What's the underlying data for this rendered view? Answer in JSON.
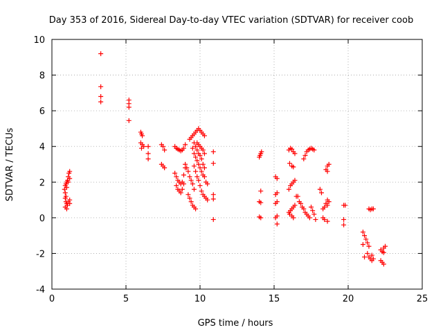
{
  "chart_data": {
    "type": "scatter",
    "title": "Day 353 of 2016, Sidereal Day-to-day VTEC variation (SDTVAR) for receiver coob",
    "xlabel": "GPS time / hours",
    "ylabel": "SDTVAR / TECUs",
    "xlim": [
      0,
      25
    ],
    "ylim": [
      -4,
      10
    ],
    "xticks": [
      0,
      5,
      10,
      15,
      20,
      25
    ],
    "yticks": [
      -4,
      -2,
      0,
      2,
      4,
      6,
      8,
      10
    ],
    "grid": true,
    "marker": "+",
    "marker_color": "#ff0000",
    "series": [
      {
        "name": "SDTVAR",
        "points": [
          [
            0.85,
            1.6
          ],
          [
            0.9,
            1.8
          ],
          [
            0.95,
            1.9
          ],
          [
            1.0,
            2.0
          ],
          [
            1.05,
            2.1
          ],
          [
            1.1,
            2.3
          ],
          [
            1.15,
            2.5
          ],
          [
            1.2,
            2.6
          ],
          [
            0.9,
            1.4
          ],
          [
            1.0,
            1.7
          ],
          [
            1.1,
            2.0
          ],
          [
            1.2,
            2.2
          ],
          [
            0.95,
            1.2
          ],
          [
            0.9,
            1.1
          ],
          [
            0.95,
            0.9
          ],
          [
            1.0,
            0.8
          ],
          [
            1.05,
            0.7
          ],
          [
            0.9,
            0.6
          ],
          [
            1.0,
            0.5
          ],
          [
            1.1,
            0.9
          ],
          [
            1.2,
            1.0
          ],
          [
            1.2,
            0.8
          ],
          [
            3.3,
            9.2
          ],
          [
            3.3,
            7.35
          ],
          [
            3.3,
            6.8
          ],
          [
            3.3,
            6.5
          ],
          [
            5.2,
            6.6
          ],
          [
            5.2,
            6.4
          ],
          [
            5.2,
            6.2
          ],
          [
            5.2,
            5.45
          ],
          [
            6.0,
            4.8
          ],
          [
            6.05,
            4.7
          ],
          [
            6.1,
            4.6
          ],
          [
            6.0,
            4.2
          ],
          [
            6.1,
            4.1
          ],
          [
            6.2,
            4.0
          ],
          [
            6.05,
            3.9
          ],
          [
            6.5,
            4.0
          ],
          [
            6.5,
            3.6
          ],
          [
            6.5,
            3.3
          ],
          [
            7.4,
            4.1
          ],
          [
            7.5,
            4.0
          ],
          [
            7.6,
            3.8
          ],
          [
            7.4,
            3.0
          ],
          [
            7.5,
            2.9
          ],
          [
            7.6,
            2.8
          ],
          [
            8.3,
            4.0
          ],
          [
            8.4,
            3.9
          ],
          [
            8.5,
            3.85
          ],
          [
            8.6,
            3.8
          ],
          [
            8.7,
            3.75
          ],
          [
            8.8,
            3.8
          ],
          [
            8.9,
            3.9
          ],
          [
            9.0,
            4.1
          ],
          [
            8.3,
            2.5
          ],
          [
            8.4,
            2.3
          ],
          [
            8.5,
            2.1
          ],
          [
            8.6,
            2.0
          ],
          [
            8.7,
            1.9
          ],
          [
            8.8,
            2.0
          ],
          [
            8.9,
            2.4
          ],
          [
            9.0,
            2.8
          ],
          [
            8.4,
            1.8
          ],
          [
            8.5,
            1.6
          ],
          [
            8.6,
            1.5
          ],
          [
            8.7,
            1.4
          ],
          [
            8.8,
            1.6
          ],
          [
            8.9,
            1.9
          ],
          [
            9.0,
            3.0
          ],
          [
            9.1,
            2.8
          ],
          [
            9.2,
            2.6
          ],
          [
            9.3,
            2.3
          ],
          [
            9.4,
            2.1
          ],
          [
            9.5,
            1.9
          ],
          [
            9.6,
            1.6
          ],
          [
            9.2,
            1.3
          ],
          [
            9.3,
            1.1
          ],
          [
            9.4,
            0.9
          ],
          [
            9.5,
            0.7
          ],
          [
            9.6,
            0.6
          ],
          [
            9.7,
            0.5
          ],
          [
            9.3,
            4.4
          ],
          [
            9.4,
            4.5
          ],
          [
            9.5,
            4.6
          ],
          [
            9.6,
            4.7
          ],
          [
            9.7,
            4.8
          ],
          [
            9.8,
            4.9
          ],
          [
            9.9,
            5.0
          ],
          [
            10.0,
            4.9
          ],
          [
            10.1,
            4.8
          ],
          [
            10.2,
            4.7
          ],
          [
            10.3,
            4.6
          ],
          [
            9.6,
            4.2
          ],
          [
            9.7,
            4.0
          ],
          [
            9.8,
            3.8
          ],
          [
            9.9,
            3.6
          ],
          [
            10.0,
            3.5
          ],
          [
            10.1,
            3.3
          ],
          [
            10.2,
            3.0
          ],
          [
            10.3,
            2.8
          ],
          [
            9.5,
            3.9
          ],
          [
            9.6,
            3.6
          ],
          [
            9.7,
            3.4
          ],
          [
            9.8,
            3.2
          ],
          [
            9.9,
            3.0
          ],
          [
            10.0,
            2.8
          ],
          [
            10.1,
            2.6
          ],
          [
            10.2,
            2.4
          ],
          [
            10.3,
            2.3
          ],
          [
            10.4,
            2.0
          ],
          [
            10.5,
            1.9
          ],
          [
            9.6,
            2.9
          ],
          [
            9.7,
            2.6
          ],
          [
            9.8,
            2.3
          ],
          [
            9.9,
            2.1
          ],
          [
            10.0,
            1.8
          ],
          [
            10.1,
            1.5
          ],
          [
            10.2,
            1.3
          ],
          [
            10.3,
            1.2
          ],
          [
            10.4,
            1.1
          ],
          [
            10.5,
            1.0
          ],
          [
            9.8,
            4.2
          ],
          [
            9.9,
            4.1
          ],
          [
            10.0,
            4.0
          ],
          [
            10.1,
            3.9
          ],
          [
            10.2,
            3.8
          ],
          [
            10.3,
            3.6
          ],
          [
            10.9,
            3.7
          ],
          [
            10.9,
            3.05
          ],
          [
            10.9,
            1.3
          ],
          [
            10.9,
            1.05
          ],
          [
            10.9,
            -0.1
          ],
          [
            14.0,
            3.4
          ],
          [
            14.05,
            3.5
          ],
          [
            14.1,
            3.6
          ],
          [
            14.15,
            3.7
          ],
          [
            14.1,
            1.5
          ],
          [
            14.0,
            0.9
          ],
          [
            14.1,
            0.85
          ],
          [
            14.0,
            0.05
          ],
          [
            14.1,
            0.0
          ],
          [
            15.1,
            2.3
          ],
          [
            15.2,
            2.2
          ],
          [
            15.2,
            1.4
          ],
          [
            15.1,
            1.3
          ],
          [
            15.2,
            0.9
          ],
          [
            15.1,
            0.8
          ],
          [
            15.2,
            0.1
          ],
          [
            15.1,
            0.0
          ],
          [
            15.2,
            -0.35
          ],
          [
            16.0,
            3.8
          ],
          [
            16.1,
            3.9
          ],
          [
            16.2,
            3.85
          ],
          [
            16.3,
            3.7
          ],
          [
            16.4,
            3.6
          ],
          [
            16.05,
            3.05
          ],
          [
            16.2,
            2.9
          ],
          [
            16.3,
            2.85
          ],
          [
            16.0,
            1.6
          ],
          [
            16.1,
            1.8
          ],
          [
            16.2,
            1.9
          ],
          [
            16.3,
            2.0
          ],
          [
            16.4,
            2.1
          ],
          [
            16.0,
            0.3
          ],
          [
            16.1,
            0.4
          ],
          [
            16.2,
            0.5
          ],
          [
            16.3,
            0.6
          ],
          [
            16.4,
            0.7
          ],
          [
            16.05,
            0.2
          ],
          [
            16.2,
            0.1
          ],
          [
            16.3,
            0.0
          ],
          [
            16.5,
            1.2
          ],
          [
            16.6,
            1.2
          ],
          [
            16.7,
            0.9
          ],
          [
            16.8,
            0.8
          ],
          [
            16.9,
            0.6
          ],
          [
            17.0,
            0.5
          ],
          [
            17.1,
            0.3
          ],
          [
            17.2,
            0.2
          ],
          [
            17.3,
            0.1
          ],
          [
            17.4,
            0.0
          ],
          [
            17.0,
            3.3
          ],
          [
            17.1,
            3.5
          ],
          [
            17.2,
            3.7
          ],
          [
            17.3,
            3.8
          ],
          [
            17.4,
            3.85
          ],
          [
            17.5,
            3.9
          ],
          [
            17.6,
            3.85
          ],
          [
            17.7,
            3.8
          ],
          [
            17.5,
            0.6
          ],
          [
            17.6,
            0.4
          ],
          [
            17.7,
            0.2
          ],
          [
            17.8,
            -0.1
          ],
          [
            18.1,
            1.6
          ],
          [
            18.2,
            1.4
          ],
          [
            18.3,
            0.5
          ],
          [
            18.4,
            0.6
          ],
          [
            18.5,
            0.8
          ],
          [
            18.6,
            0.7
          ],
          [
            18.3,
            0.0
          ],
          [
            18.4,
            -0.1
          ],
          [
            18.6,
            -0.2
          ],
          [
            18.5,
            2.7
          ],
          [
            18.6,
            2.9
          ],
          [
            18.7,
            3.0
          ],
          [
            18.6,
            2.6
          ],
          [
            18.6,
            1.0
          ],
          [
            18.7,
            0.9
          ],
          [
            19.7,
            0.7
          ],
          [
            19.8,
            0.7
          ],
          [
            19.7,
            -0.1
          ],
          [
            19.7,
            -0.4
          ],
          [
            21.0,
            -0.8
          ],
          [
            21.1,
            -1.0
          ],
          [
            21.2,
            -1.2
          ],
          [
            21.3,
            -1.4
          ],
          [
            21.4,
            -1.6
          ],
          [
            21.0,
            -1.5
          ],
          [
            21.1,
            -2.2
          ],
          [
            21.4,
            0.5
          ],
          [
            21.5,
            0.45
          ],
          [
            21.6,
            0.5
          ],
          [
            21.7,
            0.5
          ],
          [
            21.3,
            -2.0
          ],
          [
            21.4,
            -2.2
          ],
          [
            21.5,
            -2.3
          ],
          [
            21.6,
            -2.4
          ],
          [
            21.7,
            -2.3
          ],
          [
            21.6,
            -2.1
          ],
          [
            22.2,
            -1.8
          ],
          [
            22.3,
            -1.9
          ],
          [
            22.4,
            -1.7
          ],
          [
            22.5,
            -1.6
          ],
          [
            22.4,
            -1.95
          ],
          [
            22.2,
            -2.4
          ],
          [
            22.3,
            -2.5
          ],
          [
            22.4,
            -2.6
          ]
        ]
      }
    ]
  }
}
